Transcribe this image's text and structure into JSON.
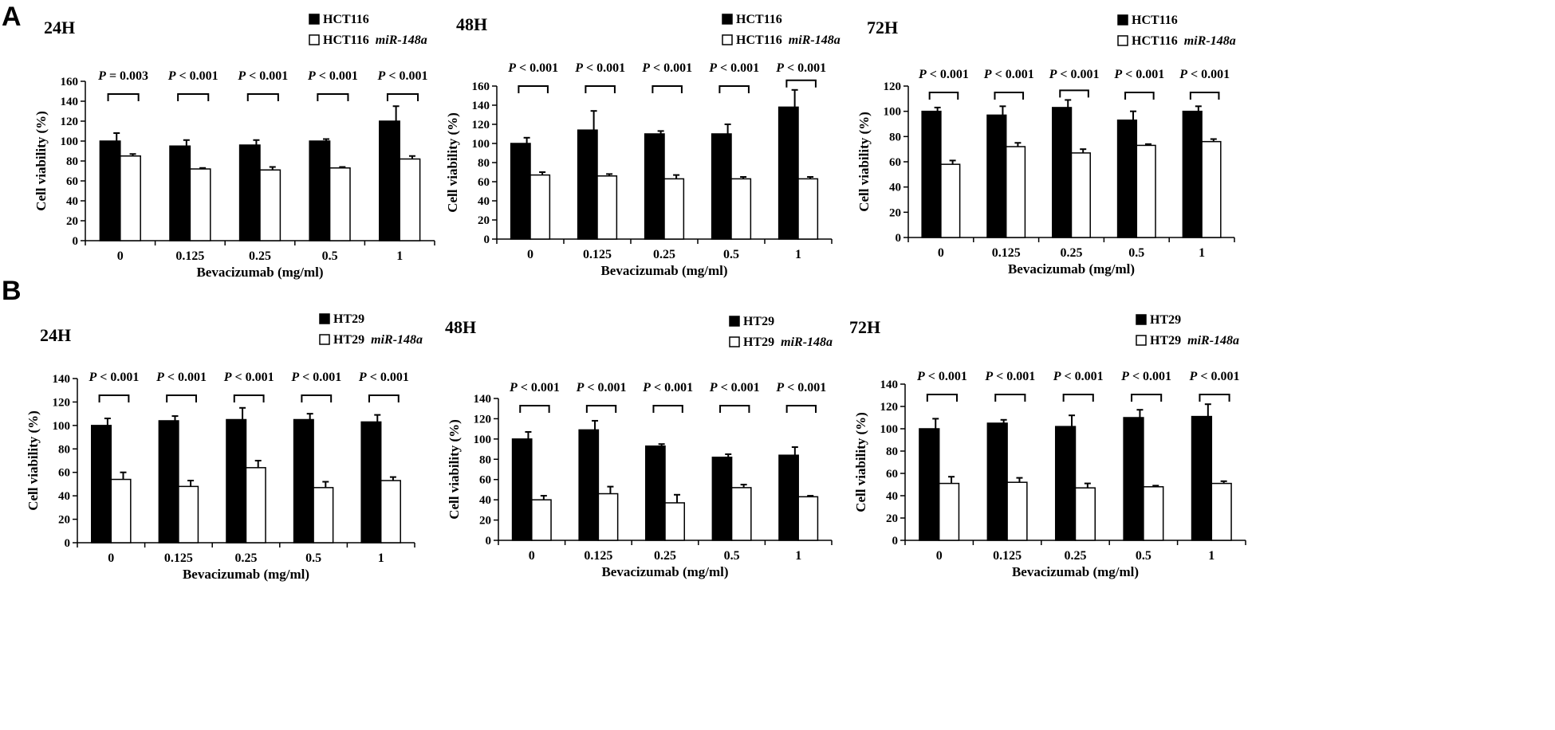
{
  "panels": [
    {
      "letter": "A"
    },
    {
      "letter": "B"
    }
  ],
  "chart_data": [
    {
      "type": "bar",
      "panel": "A",
      "title": "24H",
      "categories": [
        "0",
        "0.125",
        "0.25",
        "0.5",
        "1"
      ],
      "xlabel": "Bevacizumab (mg/ml)",
      "ylabel": "Cell viability (%)",
      "ylim": [
        0,
        160
      ],
      "yticks": [
        0,
        20,
        40,
        60,
        80,
        100,
        120,
        140,
        160
      ],
      "legend": {
        "position": "top-right"
      },
      "series": [
        {
          "name": "HCT116",
          "name_suffix": "",
          "color": "#000000",
          "values": [
            100,
            95,
            96,
            100,
            120
          ],
          "errors": [
            8,
            6,
            5,
            2,
            15
          ]
        },
        {
          "name": "HCT116",
          "name_suffix": "miR-148a",
          "color": "#ffffff",
          "values": [
            85,
            72,
            71,
            73,
            82
          ],
          "errors": [
            2,
            1,
            3,
            1,
            3
          ]
        }
      ],
      "annotations": [
        {
          "prefix": "P",
          "text": " = 0.003"
        },
        {
          "prefix": "P",
          "text": " < 0.001"
        },
        {
          "prefix": "P",
          "text": " < 0.001"
        },
        {
          "prefix": "P",
          "text": " < 0.001"
        },
        {
          "prefix": "P",
          "text": " < 0.001"
        }
      ]
    },
    {
      "type": "bar",
      "panel": "A",
      "title": "48H",
      "categories": [
        "0",
        "0.125",
        "0.25",
        "0.5",
        "1"
      ],
      "xlabel": "Bevacizumab (mg/ml)",
      "ylabel": "Cell viability (%)",
      "ylim": [
        0,
        160
      ],
      "yticks": [
        0,
        20,
        40,
        60,
        80,
        100,
        120,
        140,
        160
      ],
      "legend": {
        "position": "top-right"
      },
      "series": [
        {
          "name": "HCT116",
          "name_suffix": "",
          "color": "#000000",
          "values": [
            100,
            114,
            110,
            110,
            138
          ],
          "errors": [
            6,
            20,
            3,
            10,
            18
          ]
        },
        {
          "name": "HCT116",
          "name_suffix": "miR-148a",
          "color": "#ffffff",
          "values": [
            67,
            66,
            63,
            63,
            63
          ],
          "errors": [
            3,
            2,
            4,
            2,
            2
          ]
        }
      ],
      "annotations": [
        {
          "prefix": "P",
          "text": " < 0.001"
        },
        {
          "prefix": "P",
          "text": " < 0.001"
        },
        {
          "prefix": "P",
          "text": " < 0.001"
        },
        {
          "prefix": "P",
          "text": " < 0.001"
        },
        {
          "prefix": "P",
          "text": " < 0.001"
        }
      ]
    },
    {
      "type": "bar",
      "panel": "A",
      "title": "72H",
      "categories": [
        "0",
        "0.125",
        "0.25",
        "0.5",
        "1"
      ],
      "xlabel": "Bevacizumab (mg/ml)",
      "ylabel": "Cell viability (%)",
      "ylim": [
        0,
        120
      ],
      "yticks": [
        0,
        20,
        40,
        60,
        80,
        100,
        120
      ],
      "legend": {
        "position": "top-right"
      },
      "series": [
        {
          "name": "HCT116",
          "name_suffix": "",
          "color": "#000000",
          "values": [
            100,
            97,
            103,
            93,
            100
          ],
          "errors": [
            3,
            7,
            6,
            7,
            4
          ]
        },
        {
          "name": "HCT116",
          "name_suffix": "miR-148a",
          "color": "#ffffff",
          "values": [
            58,
            72,
            67,
            73,
            76
          ],
          "errors": [
            3,
            3,
            3,
            1,
            2
          ]
        }
      ],
      "annotations": [
        {
          "prefix": "P",
          "text": " < 0.001"
        },
        {
          "prefix": "P",
          "text": " < 0.001"
        },
        {
          "prefix": "P",
          "text": " < 0.001"
        },
        {
          "prefix": "P",
          "text": " < 0.001"
        },
        {
          "prefix": "P",
          "text": " < 0.001"
        }
      ]
    },
    {
      "type": "bar",
      "panel": "B",
      "title": "24H",
      "categories": [
        "0",
        "0.125",
        "0.25",
        "0.5",
        "1"
      ],
      "xlabel": "Bevacizumab (mg/ml)",
      "ylabel": "Cell viability (%)",
      "ylim": [
        0,
        140
      ],
      "yticks": [
        0,
        20,
        40,
        60,
        80,
        100,
        120,
        140
      ],
      "legend": {
        "position": "top-right"
      },
      "series": [
        {
          "name": "HT29",
          "name_suffix": "",
          "color": "#000000",
          "values": [
            100,
            104,
            105,
            105,
            103
          ],
          "errors": [
            6,
            4,
            10,
            5,
            6
          ]
        },
        {
          "name": "HT29",
          "name_suffix": "miR-148a",
          "color": "#ffffff",
          "values": [
            54,
            48,
            64,
            47,
            53
          ],
          "errors": [
            6,
            5,
            6,
            5,
            3
          ]
        }
      ],
      "annotations": [
        {
          "prefix": "P",
          "text": " < 0.001"
        },
        {
          "prefix": "P",
          "text": " < 0.001"
        },
        {
          "prefix": "P",
          "text": " < 0.001"
        },
        {
          "prefix": "P",
          "text": " < 0.001"
        },
        {
          "prefix": "P",
          "text": " < 0.001"
        }
      ]
    },
    {
      "type": "bar",
      "panel": "B",
      "title": "48H",
      "categories": [
        "0",
        "0.125",
        "0.25",
        "0.5",
        "1"
      ],
      "xlabel": "Bevacizumab (mg/ml)",
      "ylabel": "Cell viability (%)",
      "ylim": [
        0,
        140
      ],
      "yticks": [
        0,
        20,
        40,
        60,
        80,
        100,
        120,
        140
      ],
      "legend": {
        "position": "top-right"
      },
      "series": [
        {
          "name": "HT29",
          "name_suffix": "",
          "color": "#000000",
          "values": [
            100,
            109,
            93,
            82,
            84
          ],
          "errors": [
            7,
            9,
            2,
            3,
            8
          ]
        },
        {
          "name": "HT29",
          "name_suffix": "miR-148a",
          "color": "#ffffff",
          "values": [
            40,
            46,
            37,
            52,
            43
          ],
          "errors": [
            4,
            7,
            8,
            3,
            1
          ]
        }
      ],
      "annotations": [
        {
          "prefix": "P",
          "text": " < 0.001"
        },
        {
          "prefix": "P",
          "text": " < 0.001"
        },
        {
          "prefix": "P",
          "text": " < 0.001"
        },
        {
          "prefix": "P",
          "text": " < 0.001"
        },
        {
          "prefix": "P",
          "text": " < 0.001"
        }
      ]
    },
    {
      "type": "bar",
      "panel": "B",
      "title": "72H",
      "categories": [
        "0",
        "0.125",
        "0.25",
        "0.5",
        "1"
      ],
      "xlabel": "Bevacizumab (mg/ml)",
      "ylabel": "Cell viability (%)",
      "ylim": [
        0,
        140
      ],
      "yticks": [
        0,
        20,
        40,
        60,
        80,
        100,
        120,
        140
      ],
      "legend": {
        "position": "top-right"
      },
      "series": [
        {
          "name": "HT29",
          "name_suffix": "",
          "color": "#000000",
          "values": [
            100,
            105,
            102,
            110,
            111
          ],
          "errors": [
            9,
            3,
            10,
            7,
            11
          ]
        },
        {
          "name": "HT29",
          "name_suffix": "miR-148a",
          "color": "#ffffff",
          "values": [
            51,
            52,
            47,
            48,
            51
          ],
          "errors": [
            6,
            4,
            4,
            1,
            2
          ]
        }
      ],
      "annotations": [
        {
          "prefix": "P",
          "text": " < 0.001"
        },
        {
          "prefix": "P",
          "text": " < 0.001"
        },
        {
          "prefix": "P",
          "text": " < 0.001"
        },
        {
          "prefix": "P",
          "text": " < 0.001"
        },
        {
          "prefix": "P",
          "text": " < 0.001"
        }
      ]
    }
  ]
}
